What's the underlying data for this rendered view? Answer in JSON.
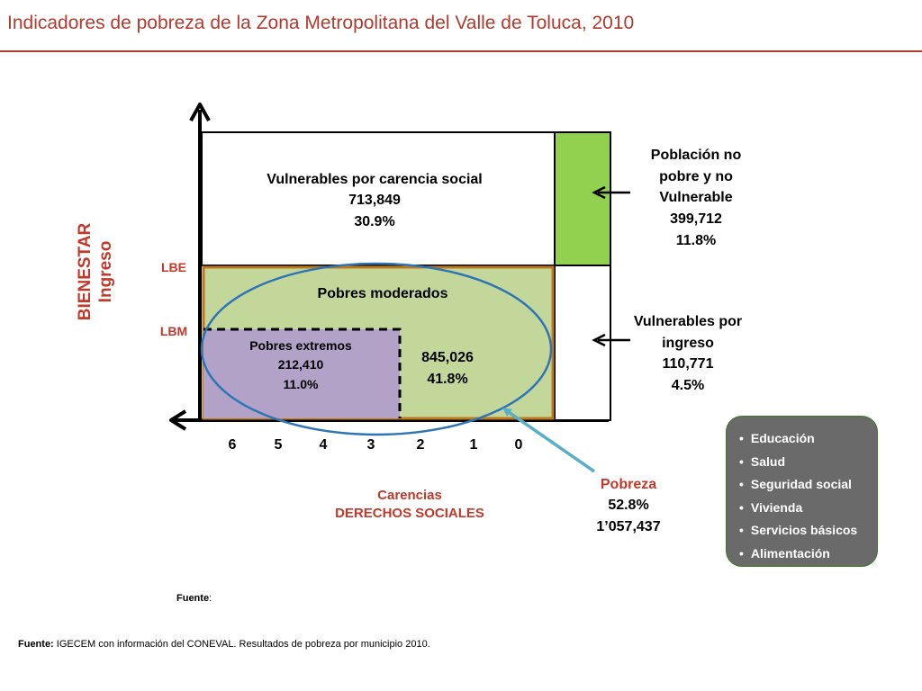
{
  "header": {
    "title": "Indicadores de pobreza de la Zona Metropolitana del Valle de Toluca, 2010"
  },
  "axes": {
    "y_label_line1": "BIENESTAR",
    "y_label_line2": "Ingreso",
    "x_label_line1": "Carencias",
    "x_label_line2": "DERECHOS SOCIALES",
    "lbe": "LBE",
    "lbm": "LBM",
    "ticks": [
      "6",
      "5",
      "4",
      "3",
      "2",
      "1",
      "0"
    ]
  },
  "regions": {
    "vulnerables_carencia": {
      "label": "Vulnerables por carencia social",
      "value": "713,849",
      "pct": "30.9%"
    },
    "pobres_moderados": {
      "label": "Pobres moderados",
      "value": "845,026",
      "pct": "41.8%"
    },
    "pobres_extremos": {
      "label": "Pobres extremos",
      "value": "212,410",
      "pct": "11.0%"
    }
  },
  "callouts": {
    "no_pobre": {
      "lines": [
        "Población no",
        "pobre y no",
        "Vulnerable"
      ],
      "value": "399,712",
      "pct": "11.8%"
    },
    "vulnerables_ingreso": {
      "lines": [
        "Vulnerables por",
        "ingreso"
      ],
      "value": "110,771",
      "pct": "4.5%"
    },
    "pobreza": {
      "label": "Pobreza",
      "pct": "52.8%",
      "value": "1’057,437"
    }
  },
  "carencias_list": [
    "Educación",
    "Salud",
    "Seguridad social",
    "Vivienda",
    "Servicios básicos",
    "Alimentación"
  ],
  "footer": {
    "small_label": "Fuente",
    "small_colon": ":",
    "source_label": "Fuente:",
    "source_text": " IGECEM con información del CONEVAL. Resultados de pobreza por municipio 2010."
  },
  "colors": {
    "title": "#b03a2e",
    "axis_label": "#c0392b",
    "green_box": "#92d050",
    "moderados_fill": "#c4d79b",
    "extremos_fill": "#b3a2c7",
    "ellipse": "#2e75b6",
    "bullet_panel": "#6a6a6a"
  }
}
